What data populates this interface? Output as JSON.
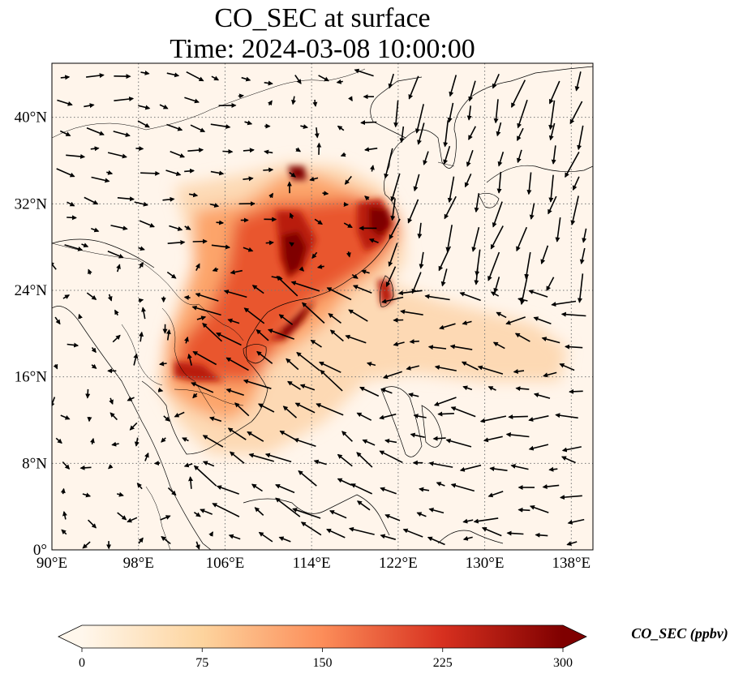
{
  "map": {
    "title_line1": "CO_SEC at surface",
    "title_line2": "Time: 2024-03-08 10:00:00",
    "projection": "PlateCarree",
    "extent": {
      "lon": [
        90,
        140
      ],
      "lat": [
        0,
        45
      ]
    },
    "gridlines": "dotted",
    "lon_ticks": [
      {
        "value": 90,
        "label": "90°E"
      },
      {
        "value": 98,
        "label": "98°E"
      },
      {
        "value": 106,
        "label": "106°E"
      },
      {
        "value": 114,
        "label": "114°E"
      },
      {
        "value": 122,
        "label": "122°E"
      },
      {
        "value": 130,
        "label": "130°E"
      },
      {
        "value": 138,
        "label": "138°E"
      }
    ],
    "lat_ticks": [
      {
        "value": 0,
        "label": "0°"
      },
      {
        "value": 8,
        "label": "8°N"
      },
      {
        "value": 16,
        "label": "16°N"
      },
      {
        "value": 24,
        "label": "24°N"
      },
      {
        "value": 32,
        "label": "32°N"
      },
      {
        "value": 40,
        "label": "40°N"
      }
    ],
    "plume_colors": [
      "#fdd9b4",
      "#fca46b",
      "#e9572f",
      "#b91c0c",
      "#7f0000"
    ],
    "background_color": "#fff5eb"
  },
  "colorbar": {
    "label": "CO_SEC (ppbv)",
    "range": [
      0,
      300
    ],
    "ticks": [
      {
        "value": 0,
        "label": "0"
      },
      {
        "value": 75,
        "label": "75"
      },
      {
        "value": 150,
        "label": "150"
      },
      {
        "value": 225,
        "label": "225"
      },
      {
        "value": 300,
        "label": "300"
      }
    ],
    "colormap": "OrRd",
    "extend": "both",
    "colors": [
      "#fff7ec",
      "#fdd49e",
      "#fc8d59",
      "#d7301f",
      "#7f0000"
    ]
  }
}
